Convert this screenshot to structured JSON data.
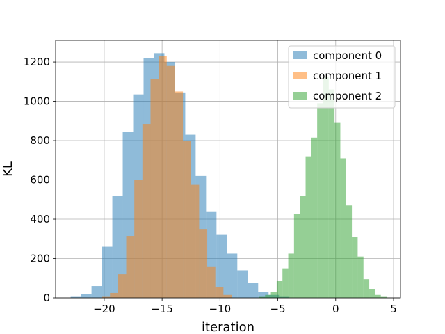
{
  "chart_data": {
    "type": "histogram",
    "title": "",
    "xlabel": "iteration",
    "ylabel": "KL",
    "xlim": [
      -24.2,
      5.6
    ],
    "ylim": [
      0,
      1310
    ],
    "xticks": [
      -20,
      -15,
      -10,
      -5,
      0,
      5
    ],
    "yticks": [
      0,
      200,
      400,
      600,
      800,
      1000,
      1200
    ],
    "grid": true,
    "legend_position": "top-right",
    "series": [
      {
        "name": "component 0",
        "color": "#1f77b4",
        "alpha": 0.5,
        "bin_width": 0.9,
        "bins": [
          [
            -22.9,
            5
          ],
          [
            -22.0,
            20
          ],
          [
            -21.1,
            60
          ],
          [
            -20.2,
            260
          ],
          [
            -19.3,
            520
          ],
          [
            -18.4,
            845
          ],
          [
            -17.5,
            1035
          ],
          [
            -16.6,
            1220
          ],
          [
            -15.7,
            1245
          ],
          [
            -14.8,
            1200
          ],
          [
            -13.9,
            1045
          ],
          [
            -13.0,
            830
          ],
          [
            -12.1,
            620
          ],
          [
            -11.2,
            440
          ],
          [
            -10.3,
            320
          ],
          [
            -9.4,
            225
          ],
          [
            -8.5,
            140
          ],
          [
            -7.6,
            75
          ],
          [
            -6.7,
            30
          ],
          [
            -5.8,
            15
          ],
          [
            -4.9,
            5
          ]
        ]
      },
      {
        "name": "component 1",
        "color": "#ff7f0e",
        "alpha": 0.5,
        "bin_width": 0.7,
        "bins": [
          [
            -20.2,
            5
          ],
          [
            -19.5,
            25
          ],
          [
            -18.8,
            120
          ],
          [
            -18.1,
            315
          ],
          [
            -17.4,
            600
          ],
          [
            -16.7,
            885
          ],
          [
            -16.0,
            1115
          ],
          [
            -15.3,
            1230
          ],
          [
            -14.6,
            1180
          ],
          [
            -13.9,
            1050
          ],
          [
            -13.2,
            800
          ],
          [
            -12.5,
            575
          ],
          [
            -11.8,
            350
          ],
          [
            -11.1,
            160
          ],
          [
            -10.4,
            55
          ],
          [
            -9.7,
            15
          ]
        ]
      },
      {
        "name": "component 2",
        "color": "#2ca02c",
        "alpha": 0.5,
        "bin_width": 0.5,
        "bins": [
          [
            -6.6,
            5
          ],
          [
            -6.1,
            15
          ],
          [
            -5.6,
            30
          ],
          [
            -5.1,
            85
          ],
          [
            -4.6,
            150
          ],
          [
            -4.1,
            225
          ],
          [
            -3.6,
            425
          ],
          [
            -3.1,
            520
          ],
          [
            -2.6,
            720
          ],
          [
            -2.1,
            815
          ],
          [
            -1.6,
            990
          ],
          [
            -1.1,
            1125
          ],
          [
            -0.6,
            1060
          ],
          [
            -0.1,
            890
          ],
          [
            0.4,
            710
          ],
          [
            0.9,
            470
          ],
          [
            1.4,
            310
          ],
          [
            1.9,
            210
          ],
          [
            2.4,
            95
          ],
          [
            2.9,
            45
          ],
          [
            3.4,
            15
          ],
          [
            3.9,
            5
          ]
        ]
      }
    ]
  }
}
